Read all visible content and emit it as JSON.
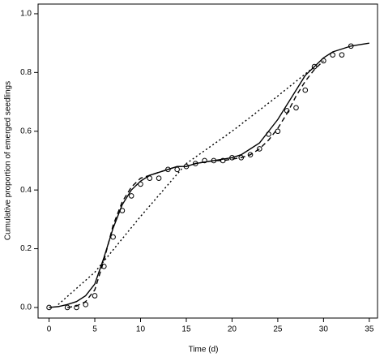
{
  "chart_data": {
    "type": "scatter",
    "x_label": "Time (d)",
    "y_label": "Cumulative proportion of emerged seedlings",
    "xlim": [
      -1.2,
      35.9
    ],
    "ylim": [
      -0.036,
      1.033
    ],
    "xticks": [
      0,
      5,
      10,
      15,
      20,
      25,
      30,
      35
    ],
    "yticks": [
      {
        "value": 0,
        "label": "0.0"
      },
      0.2,
      0.4,
      0.6,
      0.8,
      {
        "value": 1,
        "label": "1.0"
      }
    ],
    "points": {
      "x": [
        0,
        2,
        3,
        4,
        5,
        6,
        7,
        8,
        9,
        10,
        11,
        12,
        13,
        14,
        15,
        16,
        17,
        18,
        19,
        20,
        21,
        22,
        23,
        24,
        25,
        26,
        27,
        28,
        29,
        30,
        31,
        32,
        33
      ],
      "y": [
        0,
        0,
        0,
        0.01,
        0.04,
        0.14,
        0.24,
        0.33,
        0.38,
        0.42,
        0.44,
        0.44,
        0.47,
        0.47,
        0.48,
        0.49,
        0.5,
        0.5,
        0.5,
        0.51,
        0.51,
        0.52,
        0.54,
        0.59,
        0.6,
        0.67,
        0.68,
        0.74,
        0.82,
        0.84,
        0.86,
        0.86,
        0.89
      ],
      "color": "#000000"
    },
    "series": [
      {
        "dash": "solid",
        "color": "#000000",
        "x": [
          0,
          1,
          2,
          3,
          4,
          5,
          6,
          7,
          8,
          9,
          10,
          11,
          12,
          13,
          14,
          15,
          16,
          17,
          18,
          19,
          20,
          21,
          22,
          23,
          24,
          25,
          26,
          27,
          28,
          29,
          30,
          31,
          32,
          33,
          34,
          35
        ],
        "values": [
          0,
          0.003,
          0.01,
          0.02,
          0.04,
          0.08,
          0.17,
          0.27,
          0.35,
          0.4,
          0.43,
          0.45,
          0.46,
          0.47,
          0.48,
          0.48,
          0.49,
          0.495,
          0.5,
          0.505,
          0.51,
          0.52,
          0.54,
          0.56,
          0.6,
          0.64,
          0.69,
          0.74,
          0.79,
          0.82,
          0.85,
          0.87,
          0.88,
          0.89,
          0.895,
          0.9
        ]
      },
      {
        "dash": "dashed",
        "color": "#000000",
        "x": [
          2,
          3,
          4,
          5,
          6,
          7,
          8,
          9,
          10,
          11,
          12,
          13,
          14,
          15,
          16,
          17,
          18,
          19,
          20,
          21,
          22,
          23,
          24,
          25,
          26,
          27,
          28,
          29,
          30
        ],
        "values": [
          0,
          0.005,
          0.02,
          0.06,
          0.16,
          0.28,
          0.36,
          0.41,
          0.44,
          0.45,
          0.46,
          0.47,
          0.48,
          0.48,
          0.49,
          0.495,
          0.5,
          0.5,
          0.505,
          0.51,
          0.52,
          0.54,
          0.57,
          0.61,
          0.66,
          0.72,
          0.77,
          0.81,
          0.84
        ]
      },
      {
        "dash": "dotted",
        "color": "#000000",
        "x": [
          1,
          5,
          10,
          15,
          20,
          25,
          29
        ],
        "values": [
          0.01,
          0.12,
          0.31,
          0.49,
          0.6,
          0.72,
          0.82
        ]
      }
    ]
  }
}
